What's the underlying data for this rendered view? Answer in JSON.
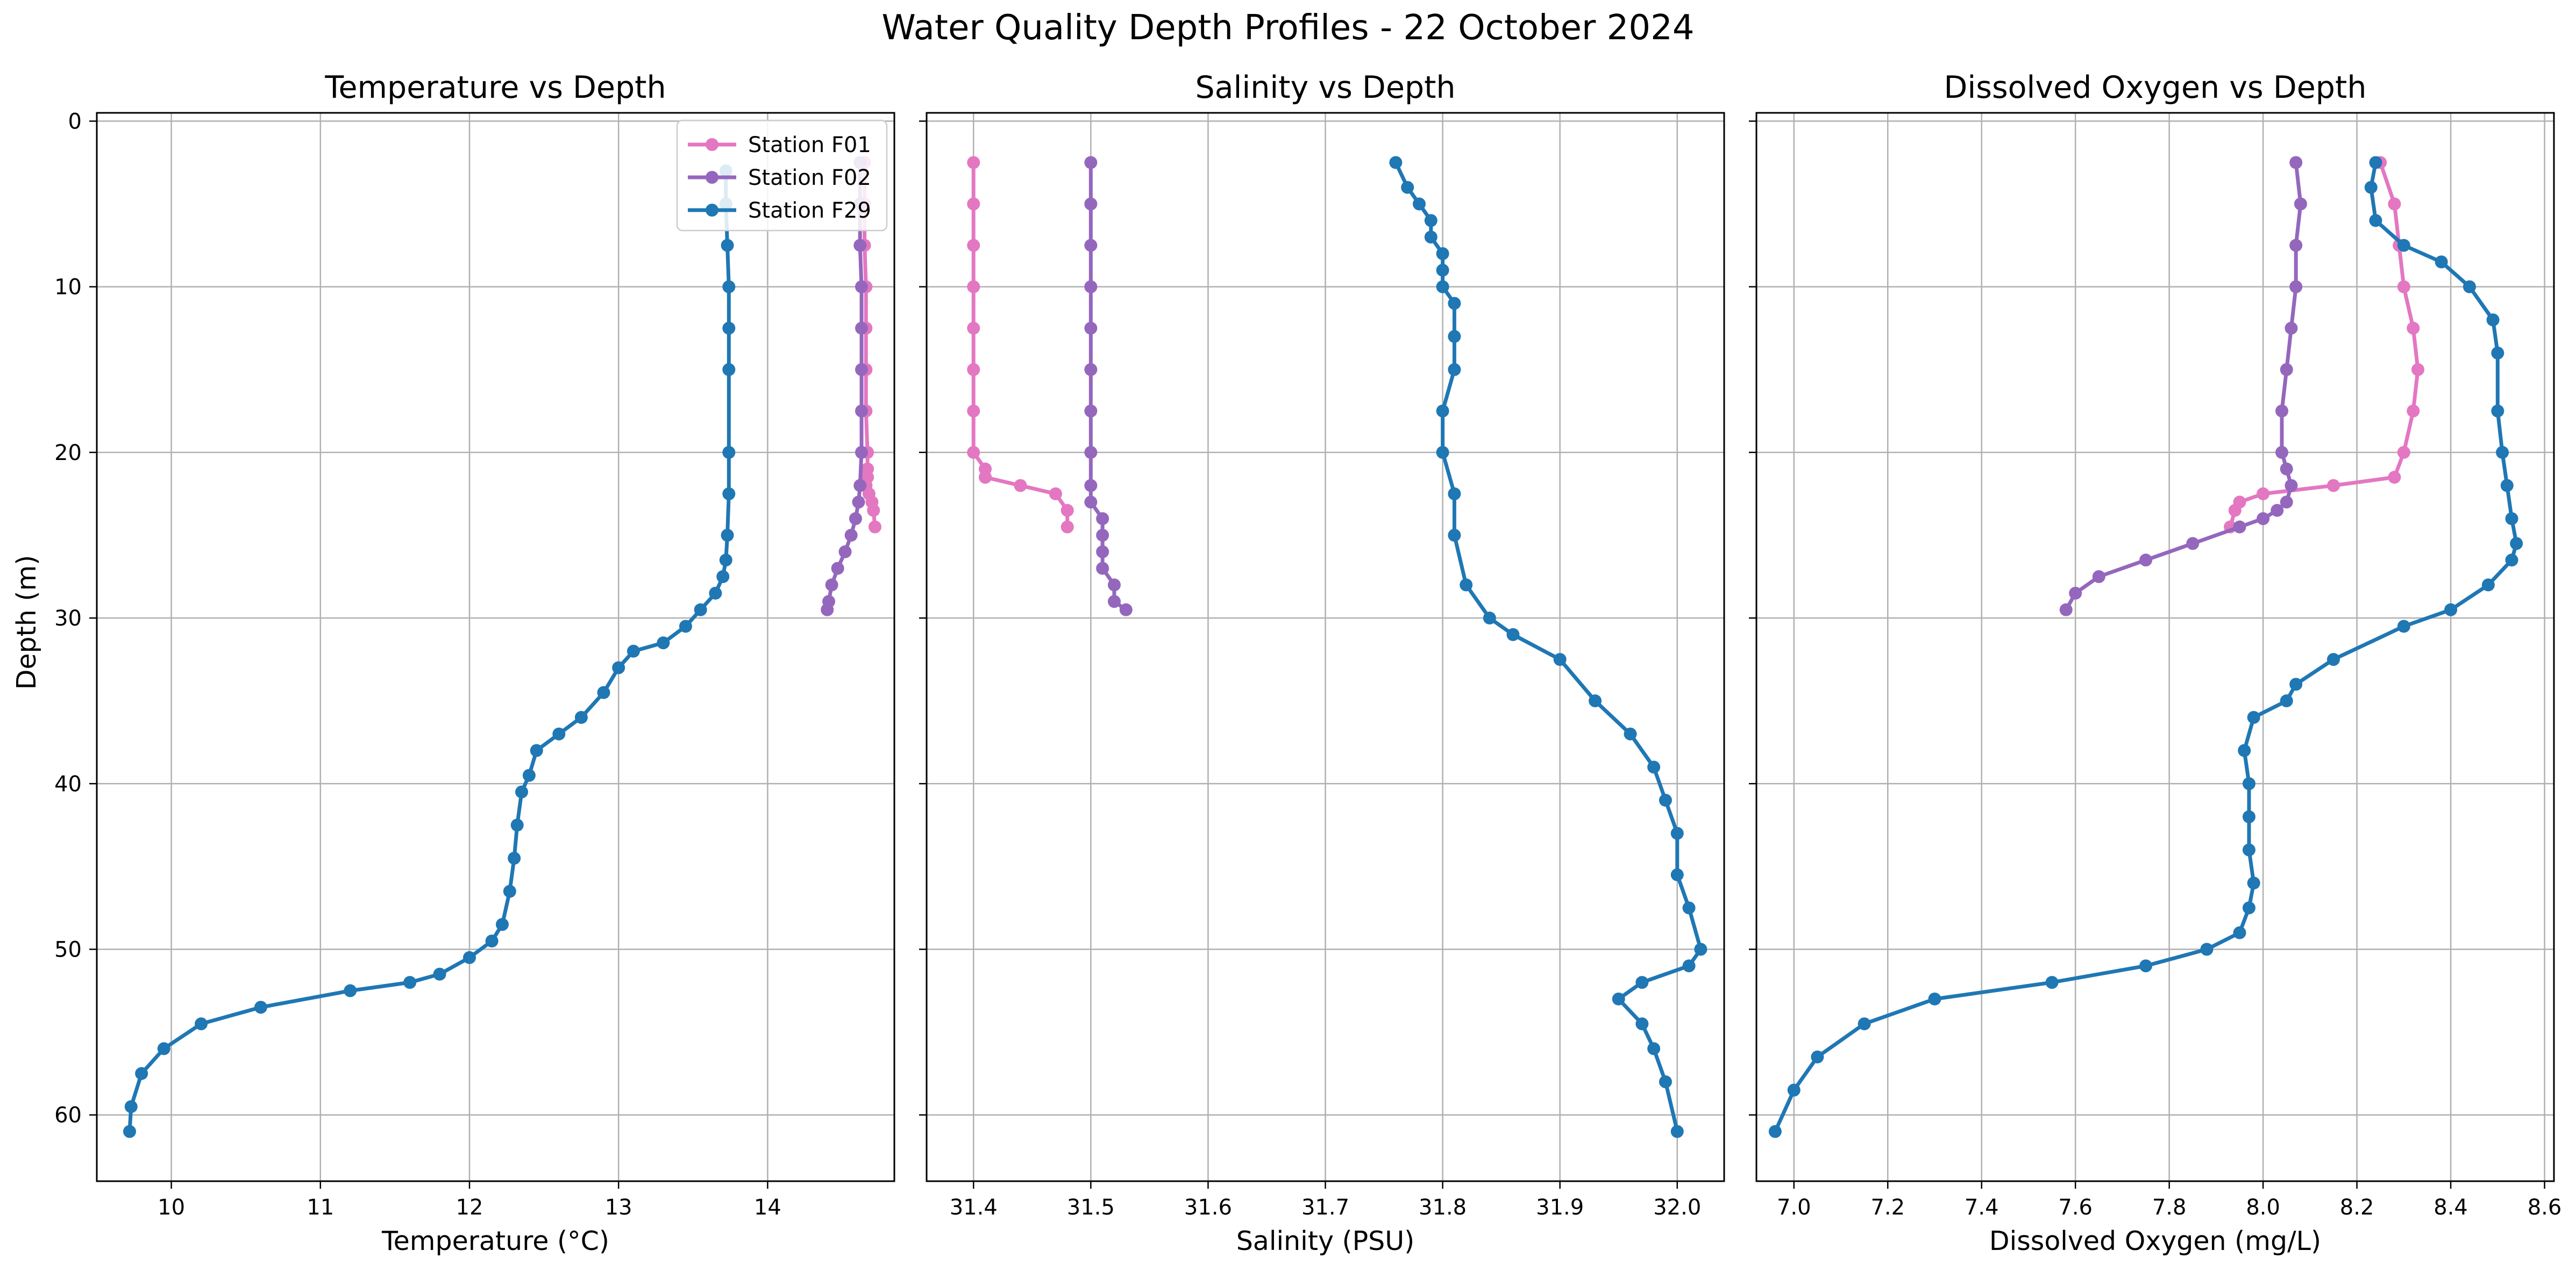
{
  "figure": {
    "title": "Water Quality Depth Profiles - 22 October 2024",
    "shared_ylabel": "Depth (m)"
  },
  "legend": {
    "placement": "top-right of first panel",
    "entries": [
      {
        "label": "Station F01",
        "color": "#e377c2"
      },
      {
        "label": "Station F02",
        "color": "#9467bd"
      },
      {
        "label": "Station F29",
        "color": "#1f77b4"
      }
    ]
  },
  "chart_data": [
    {
      "type": "line",
      "title": "Temperature vs Depth",
      "xlabel": "Temperature (°C)",
      "ylabel": "Depth (m)",
      "xlim": [
        9.5,
        14.85
      ],
      "ylim": [
        64,
        -0.5
      ],
      "y_inverted": true,
      "grid": true,
      "xticks": [
        10,
        11,
        12,
        13,
        14
      ],
      "yticks": [
        0,
        10,
        20,
        30,
        40,
        50,
        60
      ],
      "series": [
        {
          "name": "Station F01",
          "color": "#e377c2",
          "x": [
            14.65,
            14.65,
            14.65,
            14.66,
            14.66,
            14.66,
            14.66,
            14.67,
            14.67,
            14.67,
            14.66,
            14.68,
            14.7,
            14.71,
            14.72
          ],
          "y": [
            2.5,
            5,
            7.5,
            10,
            12.5,
            15,
            17.5,
            20,
            21,
            21.5,
            22,
            22.5,
            23,
            23.5,
            24.5
          ]
        },
        {
          "name": "Station F02",
          "color": "#9467bd",
          "x": [
            14.62,
            14.62,
            14.62,
            14.63,
            14.63,
            14.63,
            14.63,
            14.63,
            14.62,
            14.61,
            14.59,
            14.56,
            14.52,
            14.47,
            14.43,
            14.41,
            14.4
          ],
          "y": [
            2.5,
            5,
            7.5,
            10,
            12.5,
            15,
            17.5,
            20,
            22,
            23,
            24,
            25,
            26,
            27,
            28,
            29,
            29.5
          ]
        },
        {
          "name": "Station F29",
          "color": "#1f77b4",
          "x": [
            13.72,
            13.72,
            13.73,
            13.74,
            13.74,
            13.74,
            13.74,
            13.74,
            13.73,
            13.72,
            13.7,
            13.65,
            13.55,
            13.45,
            13.3,
            13.1,
            13.0,
            12.9,
            12.75,
            12.6,
            12.45,
            12.4,
            12.35,
            12.32,
            12.3,
            12.27,
            12.22,
            12.15,
            12.0,
            11.8,
            11.6,
            11.2,
            10.6,
            10.2,
            9.95,
            9.8,
            9.73,
            9.72
          ],
          "y": [
            3,
            5,
            7.5,
            10,
            12.5,
            15,
            20,
            22.5,
            25,
            26.5,
            27.5,
            28.5,
            29.5,
            30.5,
            31.5,
            32,
            33,
            34.5,
            36,
            37,
            38,
            39.5,
            40.5,
            42.5,
            44.5,
            46.5,
            48.5,
            49.5,
            50.5,
            51.5,
            52,
            52.5,
            53.5,
            54.5,
            56,
            57.5,
            59.5,
            61
          ]
        }
      ]
    },
    {
      "type": "line",
      "title": "Salinity vs Depth",
      "xlabel": "Salinity (PSU)",
      "ylabel": "",
      "xlim": [
        31.36,
        32.04
      ],
      "ylim": [
        64,
        -0.5
      ],
      "y_inverted": true,
      "grid": true,
      "xticks": [
        31.4,
        31.5,
        31.6,
        31.7,
        31.8,
        31.9,
        32.0
      ],
      "yticks": [
        0,
        10,
        20,
        30,
        40,
        50,
        60
      ],
      "series": [
        {
          "name": "Station F01",
          "color": "#e377c2",
          "x": [
            31.4,
            31.4,
            31.4,
            31.4,
            31.4,
            31.4,
            31.4,
            31.4,
            31.41,
            31.41,
            31.41,
            31.44,
            31.47,
            31.48,
            31.48
          ],
          "y": [
            2.5,
            5,
            7.5,
            10,
            12.5,
            15,
            17.5,
            20,
            21,
            21.5,
            21.5,
            22,
            22.5,
            23.5,
            24.5
          ]
        },
        {
          "name": "Station F02",
          "color": "#9467bd",
          "x": [
            31.5,
            31.5,
            31.5,
            31.5,
            31.5,
            31.5,
            31.5,
            31.5,
            31.5,
            31.5,
            31.51,
            31.51,
            31.51,
            31.51,
            31.52,
            31.52,
            31.53
          ],
          "y": [
            2.5,
            5,
            7.5,
            10,
            12.5,
            15,
            17.5,
            20,
            22,
            23,
            24,
            25,
            26,
            27,
            28,
            29,
            29.5
          ]
        },
        {
          "name": "Station F29",
          "color": "#1f77b4",
          "x": [
            31.76,
            31.77,
            31.78,
            31.79,
            31.79,
            31.8,
            31.8,
            31.8,
            31.81,
            31.81,
            31.81,
            31.8,
            31.8,
            31.81,
            31.81,
            31.82,
            31.84,
            31.86,
            31.9,
            31.93,
            31.96,
            31.98,
            31.99,
            32.0,
            32.0,
            32.01,
            32.02,
            32.01,
            31.97,
            31.95,
            31.97,
            31.98,
            31.99,
            32.0
          ],
          "y": [
            2.5,
            4,
            5,
            6,
            7,
            8,
            9,
            10,
            11,
            13,
            15,
            17.5,
            20,
            22.5,
            25,
            28,
            30,
            31,
            32.5,
            35,
            37,
            39,
            41,
            43,
            45.5,
            47.5,
            50,
            51,
            52,
            53,
            54.5,
            56,
            58,
            61
          ]
        }
      ]
    },
    {
      "type": "line",
      "title": "Dissolved Oxygen vs Depth",
      "xlabel": "Dissolved Oxygen (mg/L)",
      "ylabel": "",
      "xlim": [
        6.92,
        8.62
      ],
      "ylim": [
        64,
        -0.5
      ],
      "y_inverted": true,
      "grid": true,
      "xticks": [
        7.0,
        7.2,
        7.4,
        7.6,
        7.8,
        8.0,
        8.2,
        8.4,
        8.6
      ],
      "yticks": [
        0,
        10,
        20,
        30,
        40,
        50,
        60
      ],
      "series": [
        {
          "name": "Station F01",
          "color": "#e377c2",
          "x": [
            8.25,
            8.28,
            8.29,
            8.3,
            8.32,
            8.33,
            8.32,
            8.3,
            8.28,
            8.15,
            8.0,
            7.95,
            7.94,
            7.93
          ],
          "y": [
            2.5,
            5,
            7.5,
            10,
            12.5,
            15,
            17.5,
            20,
            21.5,
            22,
            22.5,
            23,
            23.5,
            24.5
          ]
        },
        {
          "name": "Station F02",
          "color": "#9467bd",
          "x": [
            8.07,
            8.08,
            8.07,
            8.07,
            8.06,
            8.05,
            8.04,
            8.04,
            8.05,
            8.06,
            8.05,
            8.03,
            8.0,
            7.95,
            7.85,
            7.75,
            7.65,
            7.6,
            7.58
          ],
          "y": [
            2.5,
            5,
            7.5,
            10,
            12.5,
            15,
            17.5,
            20,
            21,
            22,
            23,
            23.5,
            24,
            24.5,
            25.5,
            26.5,
            27.5,
            28.5,
            29.5
          ]
        },
        {
          "name": "Station F29",
          "color": "#1f77b4",
          "x": [
            8.24,
            8.23,
            8.24,
            8.3,
            8.38,
            8.44,
            8.49,
            8.5,
            8.5,
            8.51,
            8.52,
            8.53,
            8.54,
            8.53,
            8.48,
            8.4,
            8.3,
            8.15,
            8.07,
            8.05,
            7.98,
            7.96,
            7.97,
            7.97,
            7.97,
            7.98,
            7.97,
            7.95,
            7.88,
            7.75,
            7.55,
            7.3,
            7.15,
            7.05,
            7.0,
            6.96
          ],
          "y": [
            2.5,
            4,
            6,
            7.5,
            8.5,
            10,
            12,
            14,
            17.5,
            20,
            22,
            24,
            25.5,
            26.5,
            28,
            29.5,
            30.5,
            32.5,
            34,
            35,
            36,
            38,
            40,
            42,
            44,
            46,
            47.5,
            49,
            50,
            51,
            52,
            53,
            54.5,
            56.5,
            58.5,
            61
          ]
        }
      ]
    }
  ]
}
